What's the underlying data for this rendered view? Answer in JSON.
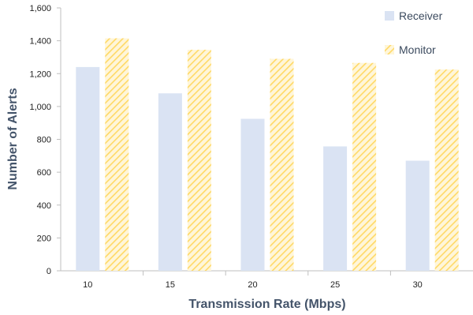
{
  "chart_data": {
    "type": "bar",
    "title": "",
    "xlabel": "Transmission Rate (Mbps)",
    "ylabel": "Number of Alerts",
    "categories": [
      "10",
      "15",
      "20",
      "25",
      "30"
    ],
    "ylim": [
      0,
      1600
    ],
    "yticks": [
      "0",
      "200",
      "400",
      "600",
      "800",
      "1,000",
      "1,200",
      "1,400",
      "1,600"
    ],
    "grid": false,
    "legend_position": "top-right",
    "series": [
      {
        "name": "Receiver",
        "values": [
          1240,
          1080,
          925,
          757,
          670
        ],
        "color": "#dae3f3",
        "pattern": "solid"
      },
      {
        "name": "Monitor",
        "values": [
          1415,
          1345,
          1290,
          1265,
          1225
        ],
        "color": "#ffd966",
        "pattern": "diagonal-hatch"
      }
    ]
  }
}
